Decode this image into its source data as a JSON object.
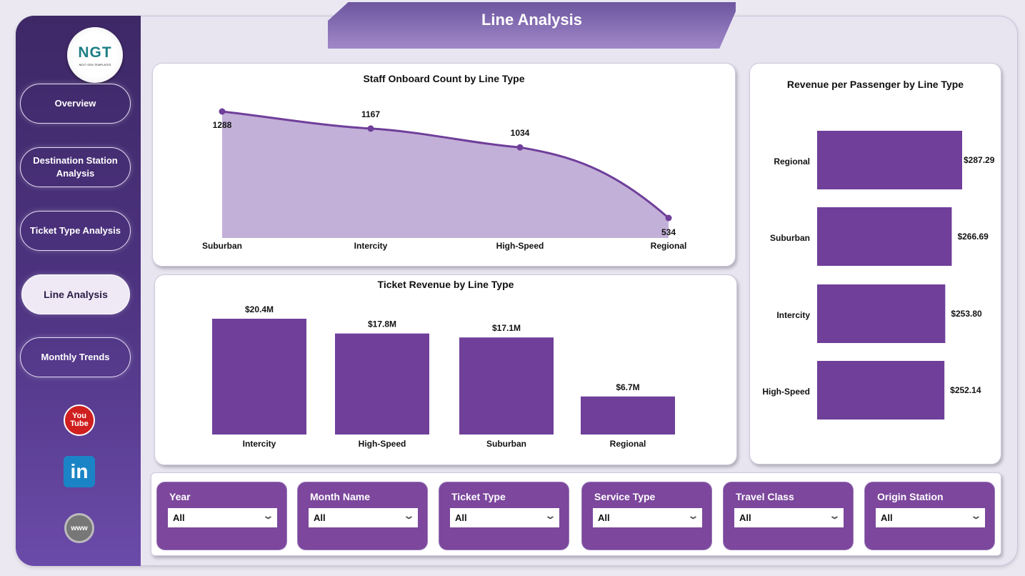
{
  "header": {
    "title": "Line Analysis"
  },
  "logo": {
    "text": "NGT",
    "subtext": "NEXT GEN TEMPLATES"
  },
  "sidebar": {
    "items": [
      {
        "label": "Overview"
      },
      {
        "label": "Destination Station Analysis"
      },
      {
        "label": "Ticket Type Analysis"
      },
      {
        "label": "Line Analysis",
        "active": true
      },
      {
        "label": "Monthly Trends"
      }
    ],
    "social": [
      {
        "icon": "youtube-icon",
        "label": "You Tube"
      },
      {
        "icon": "linkedin-icon",
        "label": "in"
      },
      {
        "icon": "globe-icon",
        "label": "www"
      }
    ]
  },
  "colors": {
    "accent": "#6f3f9a",
    "area": "#c3b0d8",
    "slicer": "#7c479c"
  },
  "filters": [
    {
      "label": "Year",
      "value": "All"
    },
    {
      "label": "Month Name",
      "value": "All"
    },
    {
      "label": "Ticket Type",
      "value": "All"
    },
    {
      "label": "Service Type",
      "value": "All"
    },
    {
      "label": "Travel Class",
      "value": "All"
    },
    {
      "label": "Origin Station",
      "value": "All"
    }
  ],
  "chart_data": [
    {
      "type": "area",
      "title": "Staff Onboard Count by Line Type",
      "categories": [
        "Suburban",
        "Intercity",
        "High-Speed",
        "Regional"
      ],
      "values": [
        1288,
        1167,
        1034,
        534
      ],
      "labels": [
        "1288",
        "1167",
        "1034",
        "534"
      ]
    },
    {
      "type": "bar",
      "title": "Ticket Revenue by Line Type",
      "categories": [
        "Intercity",
        "High-Speed",
        "Suburban",
        "Regional"
      ],
      "values": [
        20.4,
        17.8,
        17.1,
        6.7
      ],
      "labels": [
        "$20.4M",
        "$17.8M",
        "$17.1M",
        "$6.7M"
      ]
    },
    {
      "type": "bar",
      "orientation": "horizontal",
      "title": "Revenue per Passenger by Line Type",
      "categories": [
        "Regional",
        "Suburban",
        "Intercity",
        "High-Speed"
      ],
      "values": [
        287.29,
        266.69,
        253.8,
        252.14
      ],
      "labels": [
        "$287.29",
        "$266.69",
        "$253.80",
        "$252.14"
      ]
    }
  ]
}
